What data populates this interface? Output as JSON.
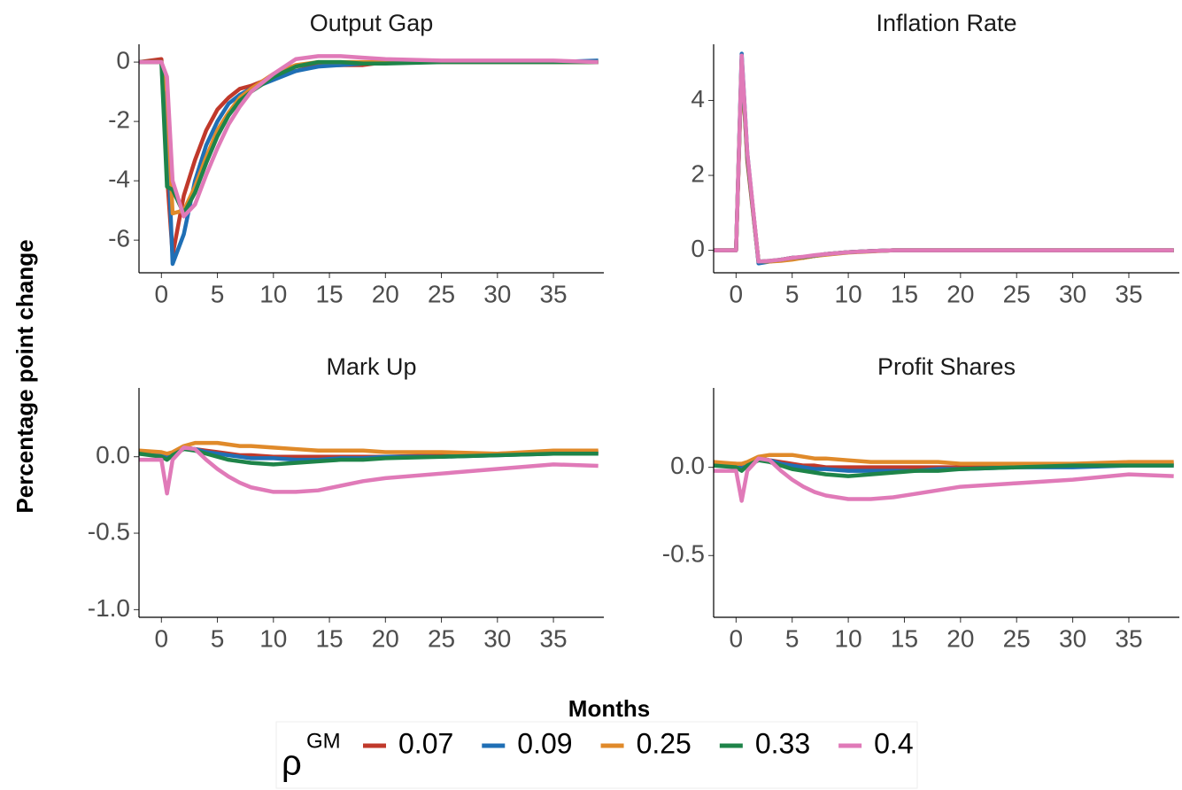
{
  "y_label": "Percentage point change",
  "x_label": "Months",
  "legend": {
    "title": "ρ",
    "title_sup": "GM"
  },
  "chart_data": [
    {
      "type": "line",
      "title": "Output Gap",
      "x": [
        -2,
        0,
        0.5,
        1,
        2,
        3,
        4,
        5,
        6,
        7,
        8,
        10,
        12,
        14,
        16,
        18,
        20,
        25,
        30,
        35,
        39
      ],
      "xlim": [
        -2,
        39.5
      ],
      "ylim": [
        -7.1,
        0.6
      ],
      "xticks": [
        0,
        5,
        10,
        15,
        20,
        25,
        30,
        35
      ],
      "yticks": [
        -6,
        -4,
        -2,
        0
      ],
      "series": [
        {
          "name": "0.07",
          "color": "#c0392b",
          "values": [
            0,
            0.1,
            -3.8,
            -6.5,
            -4.5,
            -3.3,
            -2.3,
            -1.6,
            -1.2,
            -0.9,
            -0.8,
            -0.5,
            -0.3,
            -0.1,
            -0.1,
            -0.1,
            0,
            0,
            0,
            0,
            0
          ]
        },
        {
          "name": "0.09",
          "color": "#1f6fb5",
          "values": [
            0,
            0,
            -2,
            -6.8,
            -5.8,
            -4,
            -2.8,
            -2,
            -1.4,
            -1.1,
            -0.9,
            -0.6,
            -0.3,
            -0.15,
            -0.1,
            -0.05,
            0,
            0,
            0,
            0,
            0.05
          ]
        },
        {
          "name": "0.25",
          "color": "#e08a2a",
          "values": [
            0,
            0,
            -1,
            -5.1,
            -5,
            -4.2,
            -3.2,
            -2.3,
            -1.7,
            -1.2,
            -0.9,
            -0.4,
            -0.1,
            0,
            0,
            0,
            0,
            0,
            0,
            0,
            0
          ]
        },
        {
          "name": "0.33",
          "color": "#1e8449",
          "values": [
            0,
            0,
            -4.2,
            -4.3,
            -5.1,
            -4.4,
            -3.4,
            -2.5,
            -1.8,
            -1.3,
            -1,
            -0.5,
            -0.15,
            0,
            0,
            -0.05,
            -0.05,
            0,
            0,
            0,
            0
          ]
        },
        {
          "name": "0.4",
          "color": "#e07ab8",
          "values": [
            0,
            0,
            -0.5,
            -4,
            -5.2,
            -4.8,
            -3.8,
            -2.9,
            -2.1,
            -1.5,
            -1,
            -0.4,
            0.1,
            0.2,
            0.2,
            0.15,
            0.1,
            0.05,
            0.05,
            0.05,
            0
          ]
        }
      ]
    },
    {
      "type": "line",
      "title": "Inflation Rate",
      "x": [
        -2,
        0,
        0.5,
        1,
        2,
        3,
        4,
        5,
        6,
        7,
        8,
        10,
        12,
        14,
        16,
        18,
        20,
        25,
        30,
        35,
        39
      ],
      "xlim": [
        -2,
        39.5
      ],
      "ylim": [
        -0.6,
        5.5
      ],
      "xticks": [
        0,
        5,
        10,
        15,
        20,
        25,
        30,
        35
      ],
      "yticks": [
        0,
        2,
        4
      ],
      "series": [
        {
          "name": "0.07",
          "color": "#c0392b",
          "values": [
            0,
            0,
            5.1,
            2.4,
            -0.3,
            -0.3,
            -0.25,
            -0.2,
            -0.2,
            -0.15,
            -0.1,
            -0.05,
            -0.02,
            0,
            0,
            0,
            0,
            0,
            0,
            0,
            0
          ]
        },
        {
          "name": "0.09",
          "color": "#1f6fb5",
          "values": [
            0,
            0,
            5.25,
            2.6,
            -0.35,
            -0.3,
            -0.25,
            -0.2,
            -0.18,
            -0.15,
            -0.1,
            -0.05,
            -0.02,
            0,
            0,
            0,
            0,
            0,
            0,
            0,
            0
          ]
        },
        {
          "name": "0.25",
          "color": "#e08a2a",
          "values": [
            0,
            0,
            5,
            2.5,
            -0.3,
            -0.3,
            -0.28,
            -0.25,
            -0.2,
            -0.15,
            -0.12,
            -0.06,
            -0.03,
            0,
            0,
            0,
            0,
            0,
            0,
            0,
            0
          ]
        },
        {
          "name": "0.33",
          "color": "#1e8449",
          "values": [
            0,
            0,
            5.1,
            2.5,
            -0.3,
            -0.28,
            -0.25,
            -0.2,
            -0.18,
            -0.14,
            -0.1,
            -0.05,
            -0.02,
            0,
            0,
            0,
            0,
            0,
            0,
            0,
            0
          ]
        },
        {
          "name": "0.4",
          "color": "#e07ab8",
          "values": [
            0,
            0,
            5.2,
            2.6,
            -0.3,
            -0.28,
            -0.25,
            -0.2,
            -0.17,
            -0.13,
            -0.1,
            -0.05,
            -0.02,
            0,
            0,
            0,
            0,
            0,
            0,
            0,
            0
          ]
        }
      ]
    },
    {
      "type": "line",
      "title": "Mark Up",
      "x": [
        -2,
        0,
        0.5,
        1,
        2,
        3,
        4,
        5,
        6,
        7,
        8,
        10,
        12,
        14,
        16,
        18,
        20,
        25,
        30,
        35,
        39
      ],
      "xlim": [
        -2,
        39.5
      ],
      "ylim": [
        -1.05,
        0.45
      ],
      "xticks": [
        0,
        5,
        10,
        15,
        20,
        25,
        30,
        35
      ],
      "yticks": [
        {
          "value": -1,
          "label": "-1.0"
        },
        -0.5,
        {
          "value": 0,
          "label": "0.0"
        }
      ],
      "series": [
        {
          "name": "0.07",
          "color": "#c0392b",
          "values": [
            0.03,
            0.02,
            0,
            0.02,
            0.06,
            0.05,
            0.04,
            0.03,
            0.02,
            0.01,
            0.01,
            0,
            0,
            0,
            0,
            0,
            0,
            0.01,
            0.02,
            0.03,
            0.03
          ]
        },
        {
          "name": "0.09",
          "color": "#1f6fb5",
          "values": [
            0.02,
            0.01,
            -0.01,
            0.02,
            0.06,
            0.05,
            0.03,
            0.02,
            0.01,
            0,
            -0.01,
            -0.01,
            -0.02,
            -0.02,
            -0.01,
            -0.01,
            0,
            0,
            0.01,
            0.02,
            0.02
          ]
        },
        {
          "name": "0.25",
          "color": "#e08a2a",
          "values": [
            0.04,
            0.03,
            0.02,
            0.03,
            0.07,
            0.09,
            0.09,
            0.09,
            0.08,
            0.07,
            0.07,
            0.06,
            0.05,
            0.04,
            0.04,
            0.04,
            0.03,
            0.03,
            0.02,
            0.04,
            0.04
          ]
        },
        {
          "name": "0.33",
          "color": "#1e8449",
          "values": [
            0.02,
            0,
            -0.02,
            0.01,
            0.05,
            0.04,
            0.02,
            0,
            -0.02,
            -0.03,
            -0.04,
            -0.05,
            -0.04,
            -0.03,
            -0.02,
            -0.02,
            -0.01,
            0,
            0.01,
            0.02,
            0.02
          ]
        },
        {
          "name": "0.4",
          "color": "#e07ab8",
          "values": [
            -0.02,
            -0.02,
            -0.24,
            -0.02,
            0.06,
            0.05,
            -0.02,
            -0.08,
            -0.13,
            -0.17,
            -0.2,
            -0.23,
            -0.23,
            -0.22,
            -0.19,
            -0.16,
            -0.14,
            -0.11,
            -0.08,
            -0.05,
            -0.06
          ]
        }
      ]
    },
    {
      "type": "line",
      "title": "Profit Shares",
      "x": [
        -2,
        0,
        0.5,
        1,
        2,
        3,
        4,
        5,
        6,
        7,
        8,
        10,
        12,
        14,
        16,
        18,
        20,
        25,
        30,
        35,
        39
      ],
      "xlim": [
        -2,
        39.5
      ],
      "ylim": [
        -0.85,
        0.45
      ],
      "xticks": [
        0,
        5,
        10,
        15,
        20,
        25,
        30,
        35
      ],
      "yticks": [
        -0.5,
        {
          "value": 0,
          "label": "0.0"
        }
      ],
      "series": [
        {
          "name": "0.07",
          "color": "#c0392b",
          "values": [
            0.02,
            0.02,
            0,
            0.02,
            0.05,
            0.04,
            0.03,
            0.02,
            0.01,
            0.01,
            0,
            0,
            0,
            0,
            0,
            0,
            0,
            0.01,
            0.01,
            0.02,
            0.02
          ]
        },
        {
          "name": "0.09",
          "color": "#1f6fb5",
          "values": [
            0.02,
            0.01,
            -0.01,
            0.02,
            0.05,
            0.04,
            0.02,
            0.01,
            0,
            -0.01,
            -0.01,
            -0.02,
            -0.02,
            -0.02,
            -0.02,
            -0.01,
            -0.01,
            0,
            0,
            0.01,
            0.01
          ]
        },
        {
          "name": "0.25",
          "color": "#e08a2a",
          "values": [
            0.03,
            0.02,
            0.02,
            0.03,
            0.06,
            0.07,
            0.07,
            0.07,
            0.06,
            0.05,
            0.05,
            0.04,
            0.03,
            0.03,
            0.03,
            0.03,
            0.02,
            0.02,
            0.02,
            0.03,
            0.03
          ]
        },
        {
          "name": "0.33",
          "color": "#1e8449",
          "values": [
            0.01,
            0,
            -0.02,
            0.01,
            0.04,
            0.03,
            0.01,
            -0.01,
            -0.02,
            -0.03,
            -0.04,
            -0.05,
            -0.04,
            -0.03,
            -0.02,
            -0.02,
            -0.01,
            0,
            0.01,
            0.01,
            0.01
          ]
        },
        {
          "name": "0.4",
          "color": "#e07ab8",
          "values": [
            -0.02,
            -0.02,
            -0.19,
            -0.02,
            0.05,
            0.04,
            -0.02,
            -0.07,
            -0.11,
            -0.14,
            -0.16,
            -0.18,
            -0.18,
            -0.17,
            -0.15,
            -0.13,
            -0.11,
            -0.09,
            -0.07,
            -0.04,
            -0.05
          ]
        }
      ]
    }
  ]
}
